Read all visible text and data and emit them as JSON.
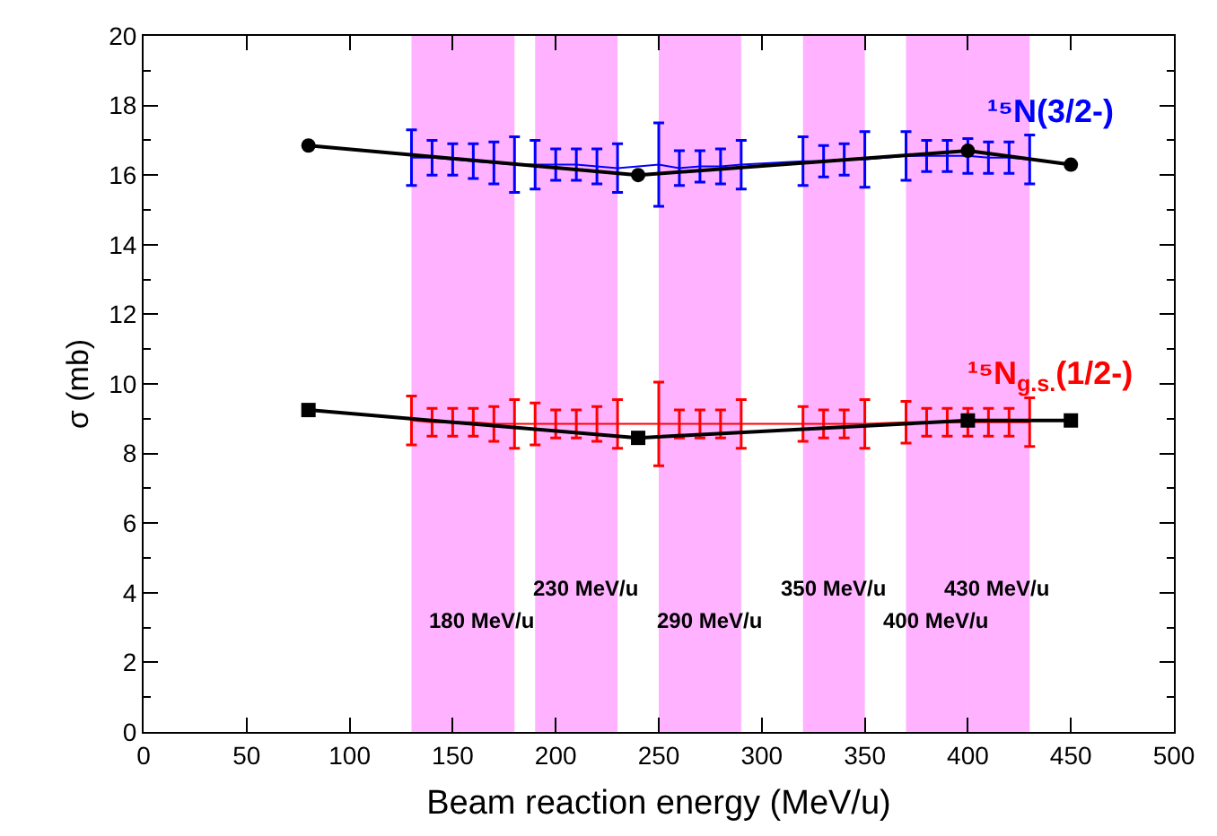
{
  "chart_data": {
    "type": "line",
    "xlabel": "Beam reaction energy (MeV/u)",
    "ylabel": "σ (mb)",
    "xlim": [
      0,
      500
    ],
    "xticks": [
      0,
      50,
      100,
      150,
      200,
      250,
      300,
      350,
      400,
      450,
      500
    ],
    "ylim": [
      0,
      20
    ],
    "yticks": [
      0,
      2,
      4,
      6,
      8,
      10,
      12,
      14,
      16,
      18,
      20
    ],
    "grid": false,
    "series": [
      {
        "name": "¹⁵N(3/2-)",
        "color": "#0000ff",
        "marker": "none",
        "x": [
          130,
          140,
          150,
          160,
          170,
          180,
          190,
          200,
          210,
          220,
          230,
          250,
          260,
          270,
          280,
          290,
          320,
          330,
          340,
          350,
          370,
          380,
          390,
          400,
          410,
          420,
          430
        ],
        "values": [
          16.5,
          16.5,
          16.45,
          16.4,
          16.35,
          16.3,
          16.3,
          16.3,
          16.3,
          16.25,
          16.2,
          16.3,
          16.2,
          16.25,
          16.25,
          16.3,
          16.4,
          16.4,
          16.45,
          16.45,
          16.55,
          16.55,
          16.55,
          16.55,
          16.5,
          16.5,
          16.45
        ],
        "errors": [
          0.8,
          0.5,
          0.45,
          0.5,
          0.6,
          0.8,
          0.7,
          0.45,
          0.45,
          0.5,
          0.7,
          1.2,
          0.5,
          0.45,
          0.5,
          0.7,
          0.7,
          0.45,
          0.45,
          0.8,
          0.7,
          0.45,
          0.45,
          0.5,
          0.45,
          0.45,
          0.7
        ]
      },
      {
        "name": "¹⁵N$_{g.s.}$(1/2-)",
        "color": "#ff0000",
        "marker": "none",
        "x": [
          130,
          140,
          150,
          160,
          170,
          180,
          190,
          200,
          210,
          220,
          230,
          250,
          260,
          270,
          280,
          290,
          320,
          330,
          340,
          350,
          370,
          380,
          390,
          400,
          410,
          420,
          430
        ],
        "values": [
          8.95,
          8.9,
          8.9,
          8.9,
          8.85,
          8.85,
          8.85,
          8.85,
          8.85,
          8.85,
          8.85,
          8.85,
          8.85,
          8.85,
          8.85,
          8.85,
          8.85,
          8.85,
          8.85,
          8.85,
          8.9,
          8.9,
          8.9,
          8.9,
          8.9,
          8.9,
          8.9
        ],
        "errors": [
          0.7,
          0.4,
          0.4,
          0.4,
          0.5,
          0.7,
          0.6,
          0.4,
          0.4,
          0.5,
          0.7,
          1.2,
          0.4,
          0.4,
          0.4,
          0.7,
          0.5,
          0.4,
          0.4,
          0.7,
          0.6,
          0.4,
          0.4,
          0.4,
          0.4,
          0.4,
          0.7
        ]
      },
      {
        "color": "#000000",
        "marker": "circle",
        "x": [
          80,
          240,
          400,
          450
        ],
        "values": [
          16.85,
          16.0,
          16.7,
          16.3
        ]
      },
      {
        "color": "#000000",
        "marker": "square",
        "x": [
          80,
          240,
          400,
          450
        ],
        "values": [
          9.25,
          8.45,
          8.95,
          8.95
        ]
      }
    ],
    "bands": [
      {
        "axis": "x",
        "from": 130,
        "to": 180,
        "label": "180 MeV/u",
        "color": "#ff00ff"
      },
      {
        "axis": "x",
        "from": 190,
        "to": 230,
        "label": "230 MeV/u",
        "color": "#ff00ff"
      },
      {
        "axis": "x",
        "from": 250,
        "to": 290,
        "label": "290 MeV/u",
        "color": "#ff00ff"
      },
      {
        "axis": "x",
        "from": 320,
        "to": 350,
        "label": "350 MeV/u",
        "color": "#ff00ff"
      },
      {
        "axis": "x",
        "from": 370,
        "to": 400,
        "label": "400 MeV/u",
        "color": "#ff00ff"
      },
      {
        "axis": "x",
        "from": 400,
        "to": 430,
        "label": "430 MeV/u",
        "color": "#ff00ff"
      }
    ]
  }
}
